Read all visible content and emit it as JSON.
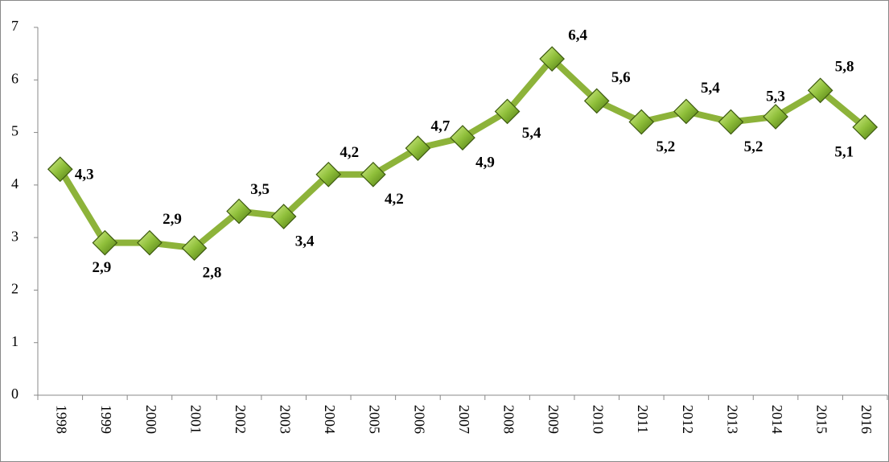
{
  "chart_data": {
    "type": "line",
    "categories": [
      "1998",
      "1999",
      "2000",
      "2001",
      "2002",
      "2003",
      "2004",
      "2005",
      "2006",
      "2007",
      "2008",
      "2009",
      "2010",
      "2011",
      "2012",
      "2013",
      "2014",
      "2015",
      "2016"
    ],
    "series": [
      {
        "color": "#8db33a",
        "values": [
          4.3,
          2.9,
          2.9,
          2.8,
          3.5,
          3.4,
          4.2,
          4.2,
          4.7,
          4.9,
          5.4,
          6.4,
          5.6,
          5.2,
          5.4,
          5.2,
          5.3,
          5.8,
          5.1
        ],
        "value_labels": [
          "4,3",
          "2,9",
          "2,9",
          "2,8",
          "3,5",
          "3,4",
          "4,2",
          "4,2",
          "4,7",
          "4,9",
          "5,4",
          "6,4",
          "5,6",
          "5,2",
          "5,4",
          "5,2",
          "5,3",
          "5,8",
          "5,1"
        ]
      }
    ],
    "ylim": [
      0,
      7
    ],
    "yticks": [
      0,
      1,
      2,
      3,
      4,
      5,
      6,
      7
    ],
    "grid": false
  }
}
